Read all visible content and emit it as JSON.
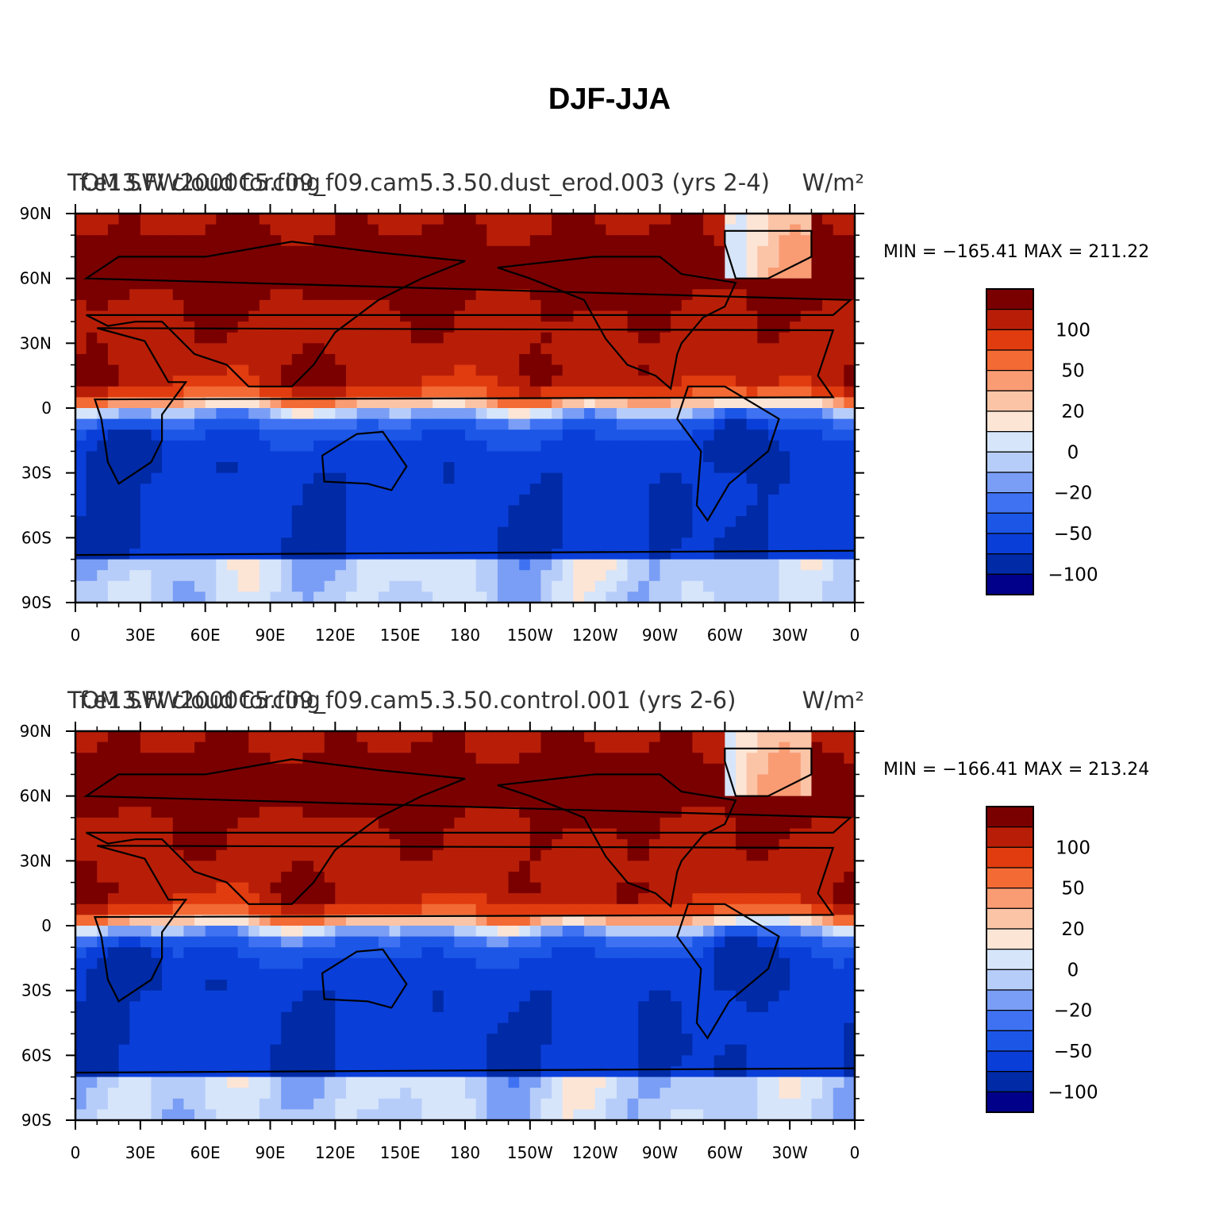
{
  "figure": {
    "title": "DJF-JJA"
  },
  "panels": [
    {
      "variable": "TOM SW cloud forcing",
      "case": "f.e13.FW2000C5.f09_f09.cam5.3.50.dust_erod.003 (yrs 2-4)",
      "units": "W/m²",
      "min_max": "MIN = −165.41  MAX = 211.22"
    },
    {
      "variable": "TOM SW cloud forcing",
      "case": "f.e13.FW2000C5.f09_f09.cam5.3.50.control.001 (yrs 2-6)",
      "units": "W/m²",
      "min_max": "MIN = −166.41  MAX = 213.24"
    }
  ],
  "axes": {
    "lat_labels": [
      "90N",
      "60N",
      "30N",
      "0",
      "30S",
      "60S",
      "90S"
    ],
    "lon_labels": [
      "0",
      "30E",
      "60E",
      "90E",
      "120E",
      "150E",
      "180",
      "150W",
      "120W",
      "90W",
      "60W",
      "30W",
      "0"
    ]
  },
  "colorbar": {
    "labels": [
      "100",
      "50",
      "20",
      "0",
      "−20",
      "−50",
      "−100"
    ],
    "levels": [
      -150,
      -100,
      -75,
      -50,
      -30,
      -20,
      -10,
      0,
      10,
      20,
      30,
      50,
      75,
      100,
      150
    ],
    "colors": [
      "#00008a",
      "#002aa6",
      "#0a3ed8",
      "#1c56e6",
      "#3f72f2",
      "#7a9ef5",
      "#b7cdf9",
      "#d6e5fa",
      "#fde5d6",
      "#fcc4a7",
      "#f99c74",
      "#f36a35",
      "#e03c10",
      "#b81e07",
      "#7a0000"
    ]
  },
  "chart_data": [
    {
      "type": "heatmap",
      "title": "DJF-JJA",
      "x_range": [
        0,
        360
      ],
      "y_range": [
        -90,
        90
      ],
      "min": -165.41,
      "max": 211.22
    },
    {
      "type": "heatmap",
      "title": "DJF-JJA",
      "x_range": [
        0,
        360
      ],
      "y_range": [
        -90,
        90
      ],
      "min": -166.41,
      "max": 213.24
    }
  ]
}
